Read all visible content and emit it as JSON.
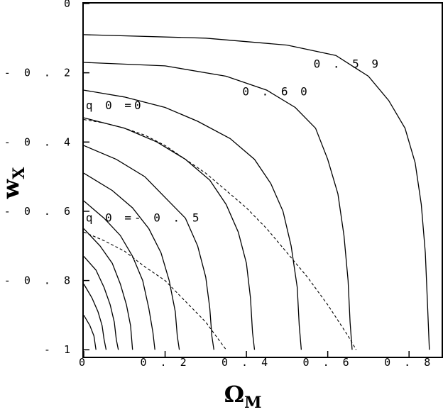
{
  "chart_data": {
    "type": "line",
    "title": "",
    "xlabel": "Ω",
    "xlabel_subscript": "M",
    "ylabel": "w",
    "ylabel_subscript": "X",
    "xlim": [
      0.0,
      0.88
    ],
    "ylim": [
      -1.02,
      0.0
    ],
    "xticks": [
      {
        "value": 0.0,
        "label": "0"
      },
      {
        "value": 0.2,
        "label": "0 . 2"
      },
      {
        "value": 0.4,
        "label": "0 . 4"
      },
      {
        "value": 0.6,
        "label": "0 . 6"
      },
      {
        "value": 0.8,
        "label": "0 . 8"
      }
    ],
    "yticks": [
      {
        "value": 0.0,
        "label": "0"
      },
      {
        "value": -0.2,
        "label": "- 0 . 2"
      },
      {
        "value": -0.4,
        "label": "- 0 . 4"
      },
      {
        "value": -0.6,
        "label": "- 0 . 6"
      },
      {
        "value": -0.8,
        "label": "- 0 . 8"
      },
      {
        "value": -1.0,
        "label": "- 1"
      }
    ],
    "grid": false,
    "legend": "none",
    "contours": [
      {
        "points": [
          [
            0.0,
            -0.09
          ],
          [
            0.3,
            -0.1
          ],
          [
            0.5,
            -0.12
          ],
          [
            0.62,
            -0.15
          ],
          [
            0.7,
            -0.21
          ],
          [
            0.75,
            -0.28
          ],
          [
            0.79,
            -0.36
          ],
          [
            0.815,
            -0.46
          ],
          [
            0.83,
            -0.58
          ],
          [
            0.84,
            -0.72
          ],
          [
            0.845,
            -0.86
          ],
          [
            0.85,
            -1.0
          ]
        ]
      },
      {
        "points": [
          [
            0.0,
            -0.17
          ],
          [
            0.2,
            -0.18
          ],
          [
            0.35,
            -0.21
          ],
          [
            0.45,
            -0.25
          ],
          [
            0.52,
            -0.3
          ],
          [
            0.57,
            -0.36
          ],
          [
            0.6,
            -0.45
          ],
          [
            0.625,
            -0.55
          ],
          [
            0.64,
            -0.67
          ],
          [
            0.65,
            -0.8
          ],
          [
            0.655,
            -0.92
          ],
          [
            0.66,
            -1.0
          ]
        ]
      },
      {
        "points": [
          [
            0.0,
            -0.25
          ],
          [
            0.1,
            -0.27
          ],
          [
            0.2,
            -0.3
          ],
          [
            0.28,
            -0.34
          ],
          [
            0.36,
            -0.39
          ],
          [
            0.42,
            -0.45
          ],
          [
            0.46,
            -0.52
          ],
          [
            0.49,
            -0.6
          ],
          [
            0.51,
            -0.7
          ],
          [
            0.525,
            -0.82
          ],
          [
            0.53,
            -0.93
          ],
          [
            0.535,
            -1.0
          ]
        ]
      },
      {
        "points": [
          [
            0.0,
            -0.33
          ],
          [
            0.1,
            -0.36
          ],
          [
            0.18,
            -0.4
          ],
          [
            0.25,
            -0.45
          ],
          [
            0.31,
            -0.51
          ],
          [
            0.35,
            -0.58
          ],
          [
            0.38,
            -0.66
          ],
          [
            0.4,
            -0.75
          ],
          [
            0.41,
            -0.85
          ],
          [
            0.415,
            -0.95
          ],
          [
            0.42,
            -1.0
          ]
        ]
      },
      {
        "points": [
          [
            0.0,
            -0.41
          ],
          [
            0.08,
            -0.45
          ],
          [
            0.15,
            -0.5
          ],
          [
            0.2,
            -0.56
          ],
          [
            0.25,
            -0.62
          ],
          [
            0.28,
            -0.7
          ],
          [
            0.3,
            -0.79
          ],
          [
            0.31,
            -0.88
          ],
          [
            0.315,
            -0.96
          ],
          [
            0.32,
            -1.0
          ]
        ]
      },
      {
        "points": [
          [
            0.0,
            -0.49
          ],
          [
            0.07,
            -0.54
          ],
          [
            0.12,
            -0.59
          ],
          [
            0.16,
            -0.65
          ],
          [
            0.19,
            -0.72
          ],
          [
            0.21,
            -0.8
          ],
          [
            0.225,
            -0.89
          ],
          [
            0.23,
            -0.96
          ],
          [
            0.235,
            -1.0
          ]
        ]
      },
      {
        "points": [
          [
            0.0,
            -0.57
          ],
          [
            0.05,
            -0.62
          ],
          [
            0.09,
            -0.67
          ],
          [
            0.12,
            -0.73
          ],
          [
            0.145,
            -0.8
          ],
          [
            0.16,
            -0.88
          ],
          [
            0.17,
            -0.95
          ],
          [
            0.175,
            -1.0
          ]
        ]
      },
      {
        "points": [
          [
            0.0,
            -0.65
          ],
          [
            0.04,
            -0.7
          ],
          [
            0.07,
            -0.75
          ],
          [
            0.09,
            -0.81
          ],
          [
            0.105,
            -0.87
          ],
          [
            0.115,
            -0.93
          ],
          [
            0.12,
            -1.0
          ]
        ]
      },
      {
        "points": [
          [
            0.0,
            -0.73
          ],
          [
            0.03,
            -0.77
          ],
          [
            0.05,
            -0.82
          ],
          [
            0.065,
            -0.87
          ],
          [
            0.075,
            -0.92
          ],
          [
            0.08,
            -0.97
          ],
          [
            0.085,
            -1.0
          ]
        ]
      },
      {
        "points": [
          [
            0.0,
            -0.81
          ],
          [
            0.02,
            -0.85
          ],
          [
            0.035,
            -0.89
          ],
          [
            0.045,
            -0.93
          ],
          [
            0.05,
            -0.97
          ],
          [
            0.055,
            -1.0
          ]
        ]
      },
      {
        "points": [
          [
            0.0,
            -0.9
          ],
          [
            0.015,
            -0.93
          ],
          [
            0.025,
            -0.96
          ],
          [
            0.03,
            -1.0
          ]
        ]
      }
    ],
    "dashed_curves": [
      {
        "points": [
          [
            0.0,
            -0.335
          ],
          [
            0.05,
            -0.345
          ],
          [
            0.1,
            -0.36
          ],
          [
            0.15,
            -0.38
          ],
          [
            0.2,
            -0.41
          ],
          [
            0.25,
            -0.45
          ],
          [
            0.3,
            -0.49
          ],
          [
            0.35,
            -0.54
          ],
          [
            0.4,
            -0.59
          ],
          [
            0.45,
            -0.65
          ],
          [
            0.5,
            -0.72
          ],
          [
            0.55,
            -0.79
          ],
          [
            0.6,
            -0.87
          ],
          [
            0.65,
            -0.96
          ],
          [
            0.67,
            -1.0
          ]
        ]
      },
      {
        "points": [
          [
            0.0,
            -0.66
          ],
          [
            0.05,
            -0.685
          ],
          [
            0.1,
            -0.715
          ],
          [
            0.15,
            -0.76
          ],
          [
            0.2,
            -0.8
          ],
          [
            0.25,
            -0.86
          ],
          [
            0.3,
            -0.92
          ],
          [
            0.35,
            -1.0
          ]
        ]
      }
    ],
    "annotations": [
      {
        "text": "0 . 5 9",
        "x": 0.565,
        "y": -0.185
      },
      {
        "text": "0 . 6 0",
        "x": 0.39,
        "y": -0.265
      },
      {
        "text": "q 0 =0",
        "x": 0.005,
        "y": -0.305
      },
      {
        "text": "q 0 =- 0 . 5",
        "x": 0.005,
        "y": -0.63
      }
    ]
  }
}
